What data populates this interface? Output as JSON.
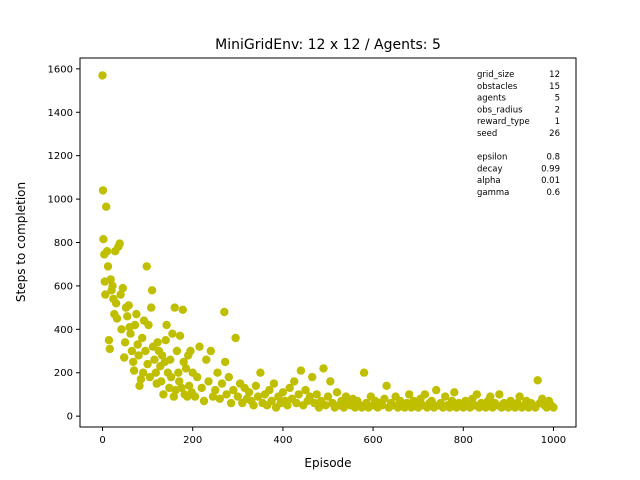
{
  "chart_data": {
    "type": "scatter",
    "title": "MiniGridEnv: 12 x 12 / Agents: 5",
    "xlabel": "Episode",
    "ylabel": "Steps to completion",
    "xlim": [
      -50,
      1050
    ],
    "ylim": [
      -50,
      1650
    ],
    "xticks": [
      0,
      200,
      400,
      600,
      800,
      1000
    ],
    "yticks": [
      0,
      200,
      400,
      600,
      800,
      1000,
      1200,
      1400,
      1600
    ],
    "grid": false,
    "marker_color": "#bfbf00",
    "params_group_1": [
      {
        "key": "grid_size",
        "value": "12"
      },
      {
        "key": "obstacles",
        "value": "15"
      },
      {
        "key": "agents",
        "value": "5"
      },
      {
        "key": "obs_radius",
        "value": "2"
      },
      {
        "key": "reward_type",
        "value": "1"
      },
      {
        "key": "seed",
        "value": "26"
      }
    ],
    "params_group_2": [
      {
        "key": "epsilon",
        "value": "0.8"
      },
      {
        "key": "decay",
        "value": "0.99"
      },
      {
        "key": "alpha",
        "value": "0.01"
      },
      {
        "key": "gamma",
        "value": "0.6"
      }
    ],
    "points": [
      [
        0,
        1570
      ],
      [
        1,
        1040
      ],
      [
        2,
        815
      ],
      [
        4,
        745
      ],
      [
        5,
        620
      ],
      [
        6,
        560
      ],
      [
        8,
        965
      ],
      [
        10,
        760
      ],
      [
        12,
        690
      ],
      [
        14,
        350
      ],
      [
        16,
        310
      ],
      [
        18,
        630
      ],
      [
        20,
        580
      ],
      [
        22,
        600
      ],
      [
        24,
        540
      ],
      [
        26,
        470
      ],
      [
        28,
        760
      ],
      [
        30,
        520
      ],
      [
        32,
        450
      ],
      [
        35,
        780
      ],
      [
        38,
        795
      ],
      [
        40,
        560
      ],
      [
        42,
        400
      ],
      [
        45,
        590
      ],
      [
        48,
        270
      ],
      [
        50,
        340
      ],
      [
        52,
        500
      ],
      [
        55,
        460
      ],
      [
        58,
        510
      ],
      [
        60,
        410
      ],
      [
        62,
        380
      ],
      [
        65,
        300
      ],
      [
        68,
        250
      ],
      [
        70,
        210
      ],
      [
        72,
        420
      ],
      [
        75,
        470
      ],
      [
        78,
        330
      ],
      [
        80,
        280
      ],
      [
        82,
        140
      ],
      [
        85,
        170
      ],
      [
        88,
        360
      ],
      [
        90,
        200
      ],
      [
        92,
        440
      ],
      [
        95,
        300
      ],
      [
        98,
        690
      ],
      [
        100,
        240
      ],
      [
        102,
        420
      ],
      [
        105,
        180
      ],
      [
        108,
        500
      ],
      [
        110,
        580
      ],
      [
        112,
        320
      ],
      [
        115,
        260
      ],
      [
        118,
        200
      ],
      [
        120,
        150
      ],
      [
        122,
        340
      ],
      [
        125,
        300
      ],
      [
        128,
        230
      ],
      [
        130,
        160
      ],
      [
        132,
        280
      ],
      [
        135,
        100
      ],
      [
        138,
        250
      ],
      [
        140,
        350
      ],
      [
        142,
        420
      ],
      [
        145,
        200
      ],
      [
        148,
        130
      ],
      [
        150,
        260
      ],
      [
        152,
        180
      ],
      [
        155,
        380
      ],
      [
        158,
        90
      ],
      [
        160,
        500
      ],
      [
        162,
        120
      ],
      [
        165,
        300
      ],
      [
        168,
        200
      ],
      [
        170,
        160
      ],
      [
        172,
        370
      ],
      [
        175,
        130
      ],
      [
        178,
        490
      ],
      [
        180,
        250
      ],
      [
        182,
        100
      ],
      [
        185,
        220
      ],
      [
        188,
        90
      ],
      [
        190,
        280
      ],
      [
        192,
        140
      ],
      [
        195,
        300
      ],
      [
        198,
        110
      ],
      [
        200,
        200
      ],
      [
        205,
        90
      ],
      [
        210,
        180
      ],
      [
        215,
        320
      ],
      [
        220,
        130
      ],
      [
        225,
        70
      ],
      [
        230,
        260
      ],
      [
        235,
        160
      ],
      [
        240,
        300
      ],
      [
        245,
        90
      ],
      [
        250,
        120
      ],
      [
        255,
        200
      ],
      [
        260,
        80
      ],
      [
        265,
        150
      ],
      [
        270,
        480
      ],
      [
        272,
        250
      ],
      [
        275,
        100
      ],
      [
        280,
        180
      ],
      [
        285,
        60
      ],
      [
        290,
        120
      ],
      [
        295,
        360
      ],
      [
        300,
        90
      ],
      [
        305,
        150
      ],
      [
        310,
        60
      ],
      [
        315,
        130
      ],
      [
        320,
        80
      ],
      [
        325,
        110
      ],
      [
        330,
        70
      ],
      [
        335,
        50
      ],
      [
        340,
        140
      ],
      [
        345,
        90
      ],
      [
        350,
        200
      ],
      [
        355,
        60
      ],
      [
        360,
        100
      ],
      [
        365,
        50
      ],
      [
        370,
        120
      ],
      [
        375,
        70
      ],
      [
        380,
        150
      ],
      [
        385,
        40
      ],
      [
        390,
        90
      ],
      [
        395,
        60
      ],
      [
        400,
        110
      ],
      [
        405,
        70
      ],
      [
        410,
        50
      ],
      [
        415,
        130
      ],
      [
        420,
        80
      ],
      [
        425,
        160
      ],
      [
        430,
        60
      ],
      [
        435,
        100
      ],
      [
        440,
        210
      ],
      [
        445,
        50
      ],
      [
        450,
        120
      ],
      [
        455,
        70
      ],
      [
        460,
        90
      ],
      [
        465,
        180
      ],
      [
        470,
        60
      ],
      [
        475,
        100
      ],
      [
        480,
        40
      ],
      [
        485,
        70
      ],
      [
        490,
        220
      ],
      [
        495,
        50
      ],
      [
        500,
        90
      ],
      [
        505,
        160
      ],
      [
        510,
        60
      ],
      [
        515,
        40
      ],
      [
        520,
        110
      ],
      [
        525,
        50
      ],
      [
        530,
        70
      ],
      [
        535,
        40
      ],
      [
        540,
        90
      ],
      [
        545,
        60
      ],
      [
        550,
        50
      ],
      [
        555,
        80
      ],
      [
        560,
        40
      ],
      [
        565,
        70
      ],
      [
        570,
        50
      ],
      [
        575,
        40
      ],
      [
        580,
        200
      ],
      [
        585,
        60
      ],
      [
        590,
        40
      ],
      [
        595,
        90
      ],
      [
        600,
        50
      ],
      [
        605,
        70
      ],
      [
        610,
        40
      ],
      [
        615,
        60
      ],
      [
        620,
        50
      ],
      [
        625,
        80
      ],
      [
        630,
        140
      ],
      [
        635,
        40
      ],
      [
        640,
        60
      ],
      [
        645,
        50
      ],
      [
        650,
        90
      ],
      [
        655,
        40
      ],
      [
        660,
        70
      ],
      [
        665,
        50
      ],
      [
        670,
        40
      ],
      [
        675,
        60
      ],
      [
        680,
        100
      ],
      [
        685,
        40
      ],
      [
        690,
        70
      ],
      [
        695,
        50
      ],
      [
        700,
        40
      ],
      [
        705,
        80
      ],
      [
        710,
        50
      ],
      [
        715,
        100
      ],
      [
        720,
        40
      ],
      [
        725,
        60
      ],
      [
        730,
        70
      ],
      [
        735,
        40
      ],
      [
        740,
        120
      ],
      [
        745,
        50
      ],
      [
        750,
        60
      ],
      [
        755,
        40
      ],
      [
        760,
        90
      ],
      [
        765,
        50
      ],
      [
        770,
        40
      ],
      [
        775,
        70
      ],
      [
        780,
        110
      ],
      [
        785,
        40
      ],
      [
        790,
        60
      ],
      [
        795,
        50
      ],
      [
        800,
        40
      ],
      [
        805,
        70
      ],
      [
        810,
        50
      ],
      [
        815,
        40
      ],
      [
        820,
        80
      ],
      [
        825,
        50
      ],
      [
        830,
        100
      ],
      [
        835,
        40
      ],
      [
        840,
        60
      ],
      [
        845,
        50
      ],
      [
        850,
        40
      ],
      [
        855,
        70
      ],
      [
        860,
        90
      ],
      [
        865,
        40
      ],
      [
        870,
        60
      ],
      [
        875,
        50
      ],
      [
        880,
        100
      ],
      [
        885,
        40
      ],
      [
        890,
        60
      ],
      [
        895,
        50
      ],
      [
        900,
        40
      ],
      [
        905,
        70
      ],
      [
        910,
        50
      ],
      [
        915,
        40
      ],
      [
        920,
        60
      ],
      [
        925,
        90
      ],
      [
        930,
        40
      ],
      [
        935,
        50
      ],
      [
        940,
        70
      ],
      [
        945,
        40
      ],
      [
        950,
        60
      ],
      [
        955,
        50
      ],
      [
        960,
        40
      ],
      [
        965,
        165
      ],
      [
        970,
        60
      ],
      [
        975,
        80
      ],
      [
        980,
        50
      ],
      [
        985,
        40
      ],
      [
        990,
        70
      ],
      [
        995,
        50
      ],
      [
        1000,
        40
      ]
    ]
  }
}
